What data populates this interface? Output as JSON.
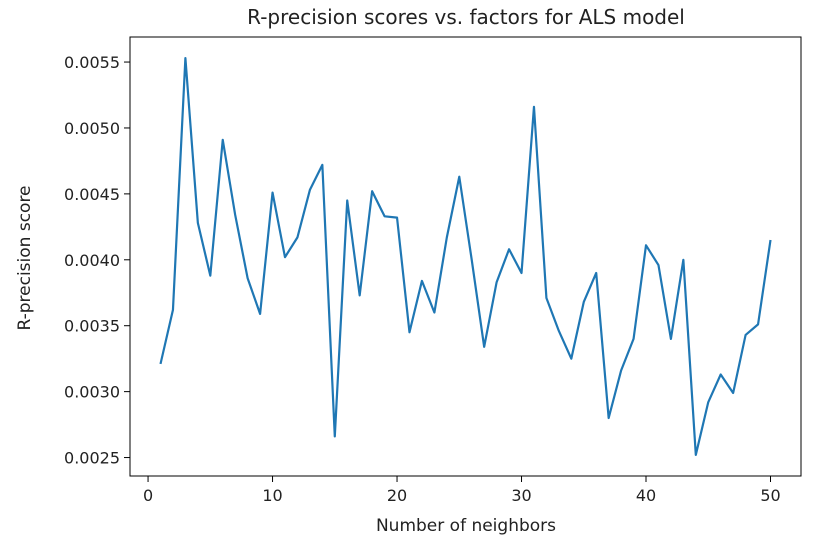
{
  "chart_data": {
    "type": "line",
    "title": "R-precision scores vs. factors for ALS model",
    "xlabel": "Number of neighbors",
    "ylabel": "R-precision score",
    "xlim": [
      -1.45,
      52.45
    ],
    "ylim": [
      0.00236,
      0.00569
    ],
    "xticks": [
      0,
      10,
      20,
      30,
      40,
      50
    ],
    "yticks": [
      0.0025,
      0.003,
      0.0035,
      0.004,
      0.0045,
      0.005,
      0.0055
    ],
    "ytick_labels": [
      "0.0025",
      "0.0030",
      "0.0035",
      "0.0040",
      "0.0045",
      "0.0050",
      "0.0055"
    ],
    "grid": false,
    "line_color": "#1f77b4",
    "series": [
      {
        "x": [
          1,
          2,
          3,
          4,
          5,
          6,
          7,
          8,
          9,
          10,
          11,
          12,
          13,
          14,
          15,
          16,
          17,
          18,
          19,
          20,
          21,
          22,
          23,
          24,
          25,
          26,
          27,
          28,
          29,
          30,
          31,
          32,
          33,
          34,
          35,
          36,
          37,
          38,
          39,
          40,
          41,
          42,
          43,
          44,
          45,
          46,
          47,
          48,
          49,
          50
        ],
        "values": [
          0.00321,
          0.00362,
          0.00553,
          0.00428,
          0.00388,
          0.00491,
          0.00434,
          0.00386,
          0.00359,
          0.00451,
          0.00402,
          0.00417,
          0.00453,
          0.00472,
          0.00266,
          0.00445,
          0.00373,
          0.00452,
          0.00433,
          0.00432,
          0.00345,
          0.00384,
          0.0036,
          0.00417,
          0.00463,
          0.004,
          0.00334,
          0.00383,
          0.00408,
          0.0039,
          0.00516,
          0.00371,
          0.00346,
          0.00325,
          0.00368,
          0.0039,
          0.0028,
          0.00316,
          0.0034,
          0.00411,
          0.00396,
          0.0034,
          0.004,
          0.00252,
          0.00292,
          0.00313,
          0.00299,
          0.00343,
          0.00351,
          0.00415
        ]
      }
    ]
  }
}
